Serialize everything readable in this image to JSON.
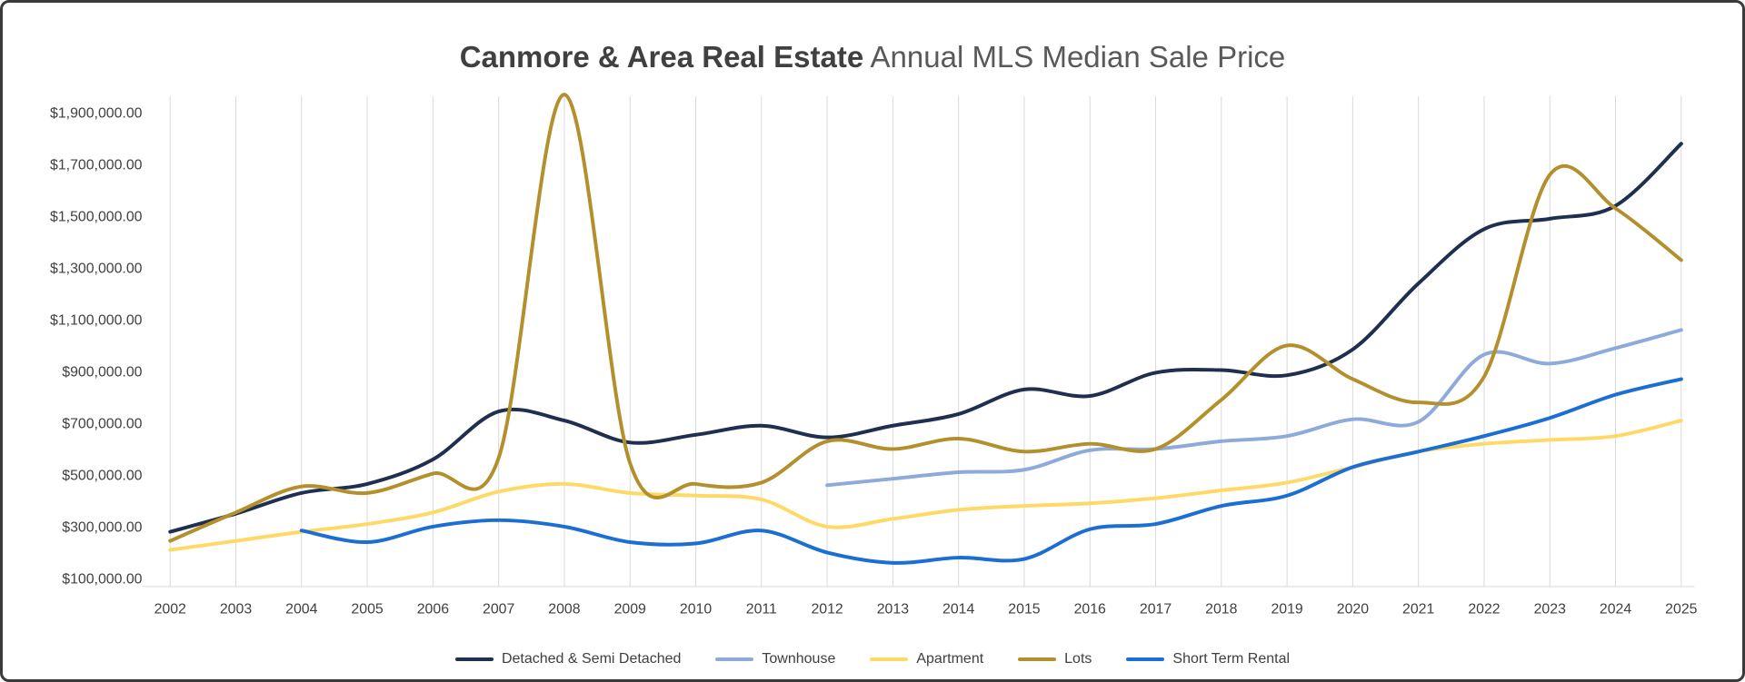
{
  "title": {
    "bold": "Canmore & Area Real Estate",
    "regular": " Annual MLS Median Sale Price"
  },
  "colors": {
    "grid": "#d9d9d9",
    "axis_text": "#404040",
    "title_bold": "#404040",
    "title_regular": "#595959",
    "frame_border": "#3a3a3a"
  },
  "chart_data": {
    "type": "line",
    "title": "Canmore & Area Real Estate Annual MLS Median Sale Price",
    "xlabel": "",
    "ylabel": "",
    "grid": "vertical-only",
    "legend_position": "bottom",
    "ylim": [
      100000,
      1970000
    ],
    "x": [
      2002,
      2003,
      2004,
      2005,
      2006,
      2007,
      2008,
      2009,
      2010,
      2011,
      2012,
      2013,
      2014,
      2015,
      2016,
      2017,
      2018,
      2019,
      2020,
      2021,
      2022,
      2023,
      2024,
      2025
    ],
    "y_ticks": [
      "$1,900,000.00",
      "$1,700,000.00",
      "$1,500,000.00",
      "$1,300,000.00",
      "$1,100,000.00",
      "$900,000.00",
      "$700,000.00",
      "$500,000.00",
      "$300,000.00",
      "$100,000.00"
    ],
    "y_tick_values": [
      1900000,
      1700000,
      1500000,
      1300000,
      1100000,
      900000,
      700000,
      500000,
      300000,
      100000
    ],
    "series": [
      {
        "name": "Detached & Semi Detached",
        "color": "#1e2f50",
        "values": [
          280000,
          350000,
          430000,
          465000,
          560000,
          745000,
          710000,
          625000,
          655000,
          690000,
          645000,
          690000,
          735000,
          830000,
          805000,
          895000,
          905000,
          885000,
          985000,
          1240000,
          1450000,
          1490000,
          1540000,
          1780000
        ]
      },
      {
        "name": "Townhouse",
        "color": "#8eaadb",
        "values": [
          null,
          null,
          null,
          null,
          null,
          null,
          null,
          null,
          null,
          null,
          460000,
          485000,
          510000,
          520000,
          595000,
          600000,
          630000,
          650000,
          715000,
          705000,
          965000,
          930000,
          990000,
          1060000
        ]
      },
      {
        "name": "Apartment",
        "color": "#ffd966",
        "values": [
          210000,
          245000,
          280000,
          310000,
          355000,
          435000,
          465000,
          430000,
          420000,
          405000,
          300000,
          330000,
          365000,
          380000,
          390000,
          410000,
          440000,
          470000,
          530000,
          590000,
          620000,
          635000,
          650000,
          710000
        ]
      },
      {
        "name": "Lots",
        "color": "#b3902c",
        "values": [
          245000,
          355000,
          455000,
          430000,
          505000,
          565000,
          1970000,
          545000,
          465000,
          470000,
          630000,
          600000,
          640000,
          590000,
          620000,
          600000,
          790000,
          1000000,
          870000,
          780000,
          880000,
          1660000,
          1530000,
          1330000
        ]
      },
      {
        "name": "Short Term Rental",
        "color": "#1b6ed3",
        "values": [
          null,
          null,
          285000,
          240000,
          300000,
          325000,
          300000,
          240000,
          235000,
          285000,
          200000,
          160000,
          180000,
          175000,
          290000,
          310000,
          380000,
          420000,
          530000,
          590000,
          650000,
          720000,
          810000,
          870000
        ]
      }
    ]
  }
}
